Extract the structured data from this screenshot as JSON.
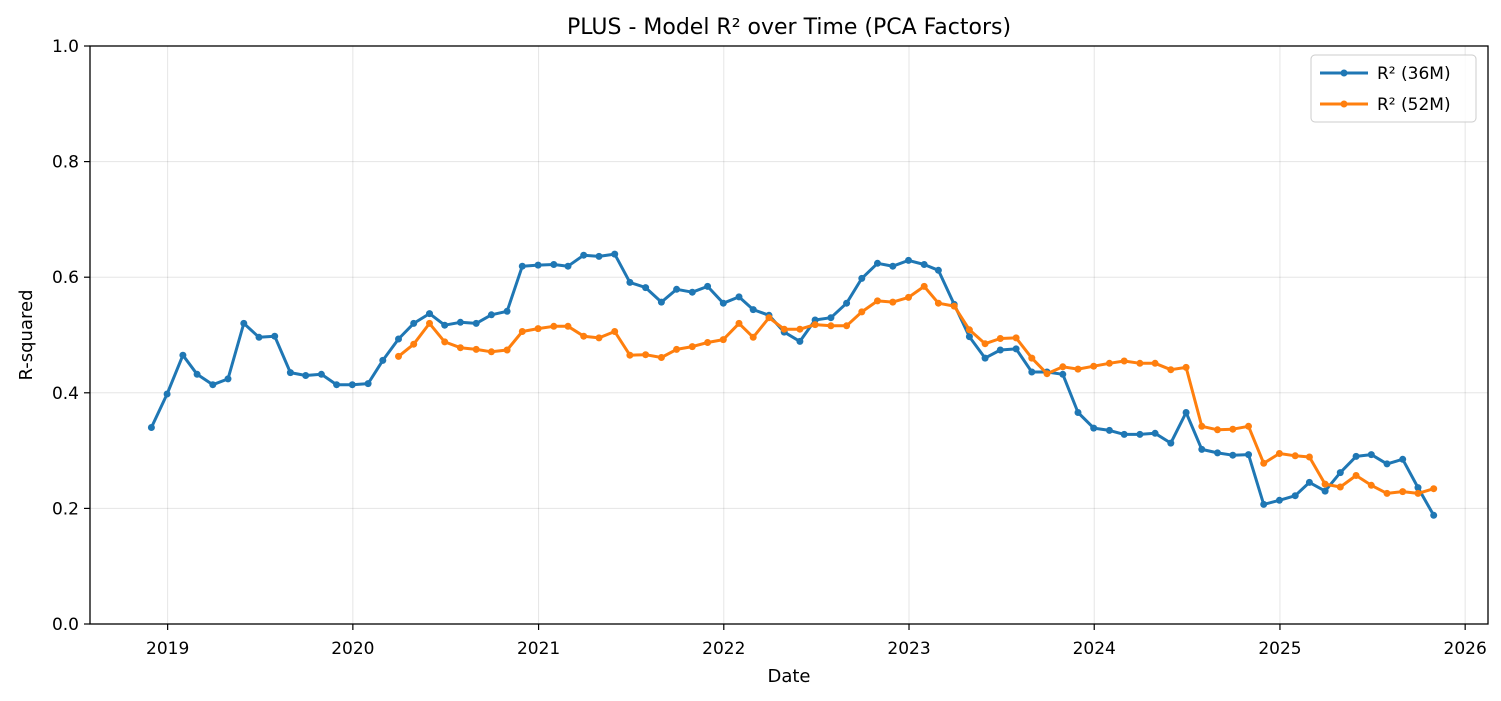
{
  "chart_data": {
    "type": "line",
    "title": "PLUS - Model R² over Time (PCA Factors)",
    "xlabel": "Date",
    "ylabel": "R-squared",
    "ylim": [
      0,
      1.0
    ],
    "xlim": [
      "2018-08-01",
      "2026-02-15"
    ],
    "x_ticks": [
      "2019",
      "2020",
      "2021",
      "2022",
      "2023",
      "2024",
      "2025",
      "2026"
    ],
    "y_ticks": [
      "0.0",
      "0.2",
      "0.4",
      "0.6",
      "0.8",
      "1.0"
    ],
    "grid": true,
    "legend_position": "top-right",
    "series": [
      {
        "name": "R² (36M)",
        "color": "#1f77b4",
        "points": [
          [
            "2018-11-30",
            0.34
          ],
          [
            "2018-12-31",
            0.398
          ],
          [
            "2019-01-31",
            0.465
          ],
          [
            "2019-02-28",
            0.432
          ],
          [
            "2019-03-31",
            0.414
          ],
          [
            "2019-04-30",
            0.424
          ],
          [
            "2019-05-31",
            0.52
          ],
          [
            "2019-06-30",
            0.496
          ],
          [
            "2019-07-31",
            0.498
          ],
          [
            "2019-08-31",
            0.435
          ],
          [
            "2019-09-30",
            0.43
          ],
          [
            "2019-10-31",
            0.432
          ],
          [
            "2019-11-30",
            0.414
          ],
          [
            "2019-12-31",
            0.414
          ],
          [
            "2020-01-31",
            0.416
          ],
          [
            "2020-02-29",
            0.456
          ],
          [
            "2020-03-31",
            0.493
          ],
          [
            "2020-04-30",
            0.52
          ],
          [
            "2020-05-31",
            0.537
          ],
          [
            "2020-06-30",
            0.517
          ],
          [
            "2020-07-31",
            0.522
          ],
          [
            "2020-08-31",
            0.52
          ],
          [
            "2020-09-30",
            0.535
          ],
          [
            "2020-10-31",
            0.541
          ],
          [
            "2020-11-30",
            0.619
          ],
          [
            "2020-12-31",
            0.621
          ],
          [
            "2021-01-31",
            0.622
          ],
          [
            "2021-02-28",
            0.619
          ],
          [
            "2021-03-31",
            0.638
          ],
          [
            "2021-04-30",
            0.636
          ],
          [
            "2021-05-31",
            0.64
          ],
          [
            "2021-06-30",
            0.591
          ],
          [
            "2021-07-31",
            0.582
          ],
          [
            "2021-08-31",
            0.557
          ],
          [
            "2021-09-30",
            0.579
          ],
          [
            "2021-10-31",
            0.574
          ],
          [
            "2021-11-30",
            0.584
          ],
          [
            "2021-12-31",
            0.555
          ],
          [
            "2022-01-31",
            0.566
          ],
          [
            "2022-02-28",
            0.544
          ],
          [
            "2022-03-31",
            0.534
          ],
          [
            "2022-04-30",
            0.505
          ],
          [
            "2022-05-31",
            0.489
          ],
          [
            "2022-06-30",
            0.526
          ],
          [
            "2022-07-31",
            0.53
          ],
          [
            "2022-08-31",
            0.555
          ],
          [
            "2022-09-30",
            0.598
          ],
          [
            "2022-10-31",
            0.624
          ],
          [
            "2022-11-30",
            0.619
          ],
          [
            "2022-12-31",
            0.629
          ],
          [
            "2023-01-31",
            0.622
          ],
          [
            "2023-02-28",
            0.612
          ],
          [
            "2023-03-31",
            0.553
          ],
          [
            "2023-04-30",
            0.497
          ],
          [
            "2023-05-31",
            0.46
          ],
          [
            "2023-06-30",
            0.474
          ],
          [
            "2023-07-31",
            0.476
          ],
          [
            "2023-08-31",
            0.436
          ],
          [
            "2023-09-30",
            0.436
          ],
          [
            "2023-10-31",
            0.432
          ],
          [
            "2023-11-30",
            0.366
          ],
          [
            "2023-12-31",
            0.339
          ],
          [
            "2024-01-31",
            0.335
          ],
          [
            "2024-02-29",
            0.328
          ],
          [
            "2024-03-31",
            0.328
          ],
          [
            "2024-04-30",
            0.33
          ],
          [
            "2024-05-31",
            0.313
          ],
          [
            "2024-06-30",
            0.366
          ],
          [
            "2024-07-31",
            0.302
          ],
          [
            "2024-08-31",
            0.296
          ],
          [
            "2024-09-30",
            0.292
          ],
          [
            "2024-10-31",
            0.293
          ],
          [
            "2024-11-30",
            0.207
          ],
          [
            "2024-12-31",
            0.214
          ],
          [
            "2025-01-31",
            0.222
          ],
          [
            "2025-02-28",
            0.245
          ],
          [
            "2025-03-31",
            0.23
          ],
          [
            "2025-04-30",
            0.262
          ],
          [
            "2025-05-31",
            0.29
          ],
          [
            "2025-06-30",
            0.293
          ],
          [
            "2025-07-31",
            0.277
          ],
          [
            "2025-08-31",
            0.285
          ],
          [
            "2025-09-30",
            0.236
          ],
          [
            "2025-10-31",
            0.188
          ]
        ]
      },
      {
        "name": "R² (52M)",
        "color": "#ff7f0e",
        "points": [
          [
            "2020-03-31",
            0.463
          ],
          [
            "2020-04-30",
            0.484
          ],
          [
            "2020-05-31",
            0.52
          ],
          [
            "2020-06-30",
            0.488
          ],
          [
            "2020-07-31",
            0.478
          ],
          [
            "2020-08-31",
            0.475
          ],
          [
            "2020-09-30",
            0.471
          ],
          [
            "2020-10-31",
            0.474
          ],
          [
            "2020-11-30",
            0.506
          ],
          [
            "2020-12-31",
            0.511
          ],
          [
            "2021-01-31",
            0.515
          ],
          [
            "2021-02-28",
            0.515
          ],
          [
            "2021-03-31",
            0.498
          ],
          [
            "2021-04-30",
            0.495
          ],
          [
            "2021-05-31",
            0.506
          ],
          [
            "2021-06-30",
            0.465
          ],
          [
            "2021-07-31",
            0.466
          ],
          [
            "2021-08-31",
            0.461
          ],
          [
            "2021-09-30",
            0.475
          ],
          [
            "2021-10-31",
            0.48
          ],
          [
            "2021-11-30",
            0.487
          ],
          [
            "2021-12-31",
            0.492
          ],
          [
            "2022-01-31",
            0.52
          ],
          [
            "2022-02-28",
            0.496
          ],
          [
            "2022-03-31",
            0.53
          ],
          [
            "2022-04-30",
            0.51
          ],
          [
            "2022-05-31",
            0.51
          ],
          [
            "2022-06-30",
            0.518
          ],
          [
            "2022-07-31",
            0.516
          ],
          [
            "2022-08-31",
            0.516
          ],
          [
            "2022-09-30",
            0.54
          ],
          [
            "2022-10-31",
            0.559
          ],
          [
            "2022-11-30",
            0.557
          ],
          [
            "2022-12-31",
            0.565
          ],
          [
            "2023-01-31",
            0.584
          ],
          [
            "2023-02-28",
            0.555
          ],
          [
            "2023-03-31",
            0.55
          ],
          [
            "2023-04-30",
            0.509
          ],
          [
            "2023-05-31",
            0.485
          ],
          [
            "2023-06-30",
            0.494
          ],
          [
            "2023-07-31",
            0.495
          ],
          [
            "2023-08-31",
            0.46
          ],
          [
            "2023-09-30",
            0.433
          ],
          [
            "2023-10-31",
            0.445
          ],
          [
            "2023-11-30",
            0.441
          ],
          [
            "2023-12-31",
            0.446
          ],
          [
            "2024-01-31",
            0.451
          ],
          [
            "2024-02-29",
            0.455
          ],
          [
            "2024-03-31",
            0.451
          ],
          [
            "2024-04-30",
            0.451
          ],
          [
            "2024-05-31",
            0.44
          ],
          [
            "2024-06-30",
            0.444
          ],
          [
            "2024-07-31",
            0.342
          ],
          [
            "2024-08-31",
            0.336
          ],
          [
            "2024-09-30",
            0.337
          ],
          [
            "2024-10-31",
            0.342
          ],
          [
            "2024-11-30",
            0.278
          ],
          [
            "2024-12-31",
            0.295
          ],
          [
            "2025-01-31",
            0.291
          ],
          [
            "2025-02-28",
            0.289
          ],
          [
            "2025-03-31",
            0.242
          ],
          [
            "2025-04-30",
            0.237
          ],
          [
            "2025-05-31",
            0.257
          ],
          [
            "2025-06-30",
            0.24
          ],
          [
            "2025-07-31",
            0.226
          ],
          [
            "2025-08-31",
            0.229
          ],
          [
            "2025-09-30",
            0.226
          ],
          [
            "2025-10-31",
            0.234
          ]
        ]
      }
    ]
  }
}
